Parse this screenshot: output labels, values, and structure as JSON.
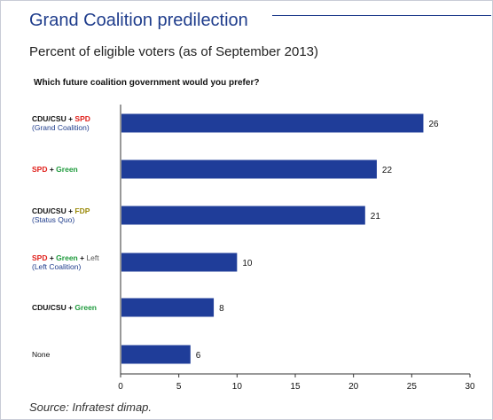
{
  "title": "Grand Coalition predilection",
  "subtitle": "Percent of eligible voters (as of September 2013)",
  "question": "Which future coalition government would you prefer?",
  "source": "Source: Infratest dimap.",
  "colors": {
    "bar": "#1f3d99",
    "title": "#1f3d8c",
    "cdu": "#111111",
    "spd": "#e0201b",
    "green": "#1e9a3c",
    "fdp": "#9a8a0a",
    "left": "#555555",
    "sub": "#1f3d8c"
  },
  "categories": [
    {
      "parts": [
        {
          "text": "CDU/CSU",
          "party": "cdu"
        },
        {
          "text": " + ",
          "party": "plus"
        },
        {
          "text": "SPD",
          "party": "spd"
        }
      ],
      "sub": "(Grand Coalition)"
    },
    {
      "parts": [
        {
          "text": "SPD",
          "party": "spd"
        },
        {
          "text": " + ",
          "party": "plus"
        },
        {
          "text": "Green",
          "party": "green"
        }
      ],
      "sub": ""
    },
    {
      "parts": [
        {
          "text": "CDU/CSU",
          "party": "cdu"
        },
        {
          "text": " + ",
          "party": "plus"
        },
        {
          "text": "FDP",
          "party": "fdp"
        }
      ],
      "sub": "(Status Quo)"
    },
    {
      "parts": [
        {
          "text": "SPD",
          "party": "spd"
        },
        {
          "text": " + ",
          "party": "plus"
        },
        {
          "text": "Green",
          "party": "green"
        },
        {
          "text": " + ",
          "party": "plus"
        },
        {
          "text": "Left",
          "party": "left"
        }
      ],
      "sub": "(Left Coalition)"
    },
    {
      "parts": [
        {
          "text": "CDU/CSU",
          "party": "cdu"
        },
        {
          "text": " + ",
          "party": "plus"
        },
        {
          "text": "Green",
          "party": "green"
        }
      ],
      "sub": ""
    },
    {
      "parts": [
        {
          "text": "None",
          "party": "none"
        }
      ],
      "sub": ""
    }
  ],
  "chart_data": {
    "type": "bar",
    "orientation": "horizontal",
    "title": "Grand Coalition predilection",
    "subtitle": "Percent of eligible voters (as of September 2013)",
    "categories": [
      "CDU/CSU + SPD (Grand Coalition)",
      "SPD + Green",
      "CDU/CSU + FDP (Status Quo)",
      "SPD + Green + Left (Left Coalition)",
      "CDU/CSU + Green",
      "None"
    ],
    "values": [
      26,
      22,
      21,
      10,
      8,
      6
    ],
    "data_labels": [
      "26",
      "22",
      "21",
      "10",
      "8",
      "6"
    ],
    "xlim": [
      0,
      30
    ],
    "xticks": [
      0,
      5,
      10,
      15,
      20,
      25,
      30
    ],
    "xtick_labels": [
      "0",
      "5",
      "10",
      "15",
      "20",
      "25",
      "30"
    ],
    "grid": false,
    "legend": "none"
  }
}
